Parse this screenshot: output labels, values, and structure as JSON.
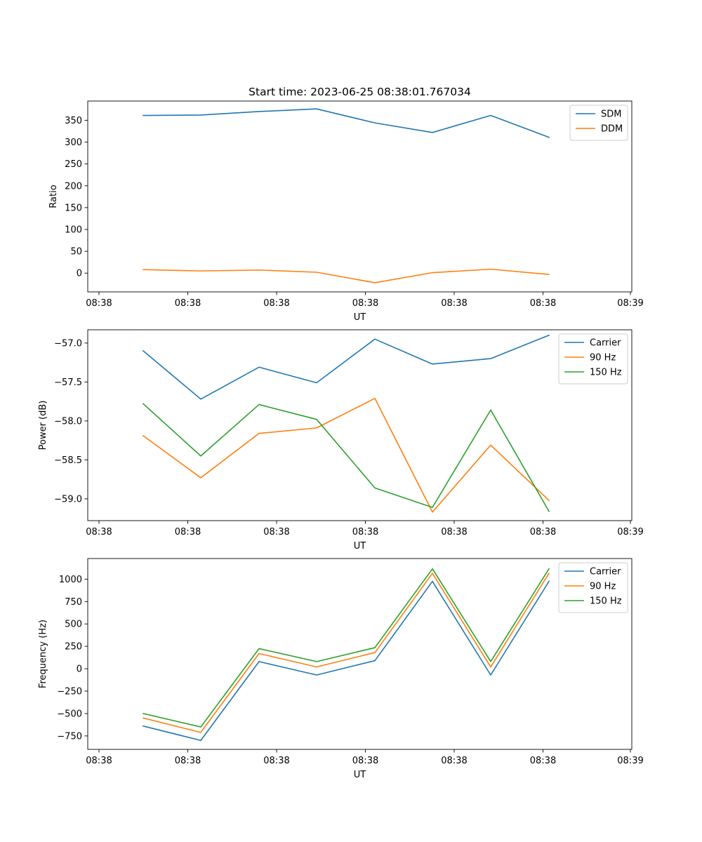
{
  "title": "Start time: 2023-06-25 08:38:01.767034",
  "chart_data": [
    {
      "type": "line",
      "ylabel": "Ratio",
      "xlabel": "UT",
      "x_tick_labels": [
        "08:38",
        "08:38",
        "08:38",
        "08:38",
        "08:38",
        "08:38",
        "08:39"
      ],
      "ylim": [
        -43,
        394
      ],
      "y_ticks": [
        0,
        50,
        100,
        150,
        200,
        250,
        300,
        350
      ],
      "legend_position": "top-right",
      "series": [
        {
          "name": "SDM",
          "color": "#1f77b4",
          "values": [
            361,
            362,
            370,
            376,
            344,
            322,
            361,
            311
          ]
        },
        {
          "name": "DDM",
          "color": "#ff7f0e",
          "values": [
            8,
            5,
            7,
            2,
            -22,
            1,
            9,
            -3
          ]
        }
      ]
    },
    {
      "type": "line",
      "ylabel": "Power (dB)",
      "xlabel": "UT",
      "x_tick_labels": [
        "08:38",
        "08:38",
        "08:38",
        "08:38",
        "08:38",
        "08:38",
        "08:39"
      ],
      "ylim": [
        -59.28,
        -56.83
      ],
      "y_ticks": [
        -59.0,
        -58.5,
        -58.0,
        -57.5,
        -57.0
      ],
      "y_tick_labels": [
        "−59.0",
        "−58.5",
        "−58.0",
        "−57.5",
        "−57.0"
      ],
      "legend_position": "top-right",
      "series": [
        {
          "name": "Carrier",
          "color": "#1f77b4",
          "values": [
            -57.1,
            -57.72,
            -57.31,
            -57.51,
            -56.95,
            -57.27,
            -57.2,
            -56.9
          ]
        },
        {
          "name": "90 Hz",
          "color": "#ff7f0e",
          "values": [
            -58.19,
            -58.73,
            -58.16,
            -58.09,
            -57.71,
            -59.17,
            -58.31,
            -59.02
          ]
        },
        {
          "name": "150 Hz",
          "color": "#2ca02c",
          "values": [
            -57.78,
            -58.45,
            -57.79,
            -57.98,
            -58.86,
            -59.11,
            -57.86,
            -59.16
          ]
        }
      ]
    },
    {
      "type": "line",
      "ylabel": "Frequency (Hz)",
      "xlabel": "UT",
      "x_tick_labels": [
        "08:38",
        "08:38",
        "08:38",
        "08:38",
        "08:38",
        "08:38",
        "08:39"
      ],
      "ylim": [
        -900,
        1230
      ],
      "y_ticks": [
        -750,
        -500,
        -250,
        0,
        250,
        500,
        750,
        1000
      ],
      "y_tick_labels": [
        "−750",
        "−500",
        "−250",
        "0",
        "250",
        "500",
        "750",
        "1000"
      ],
      "legend_position": "top-right",
      "series": [
        {
          "name": "Carrier",
          "color": "#1f77b4",
          "values": [
            -640,
            -800,
            80,
            -70,
            90,
            975,
            -70,
            975
          ]
        },
        {
          "name": "90 Hz",
          "color": "#ff7f0e",
          "values": [
            -550,
            -710,
            170,
            20,
            180,
            1065,
            20,
            1065
          ]
        },
        {
          "name": "150 Hz",
          "color": "#2ca02c",
          "values": [
            -500,
            -650,
            225,
            80,
            235,
            1115,
            80,
            1115
          ]
        }
      ]
    }
  ]
}
